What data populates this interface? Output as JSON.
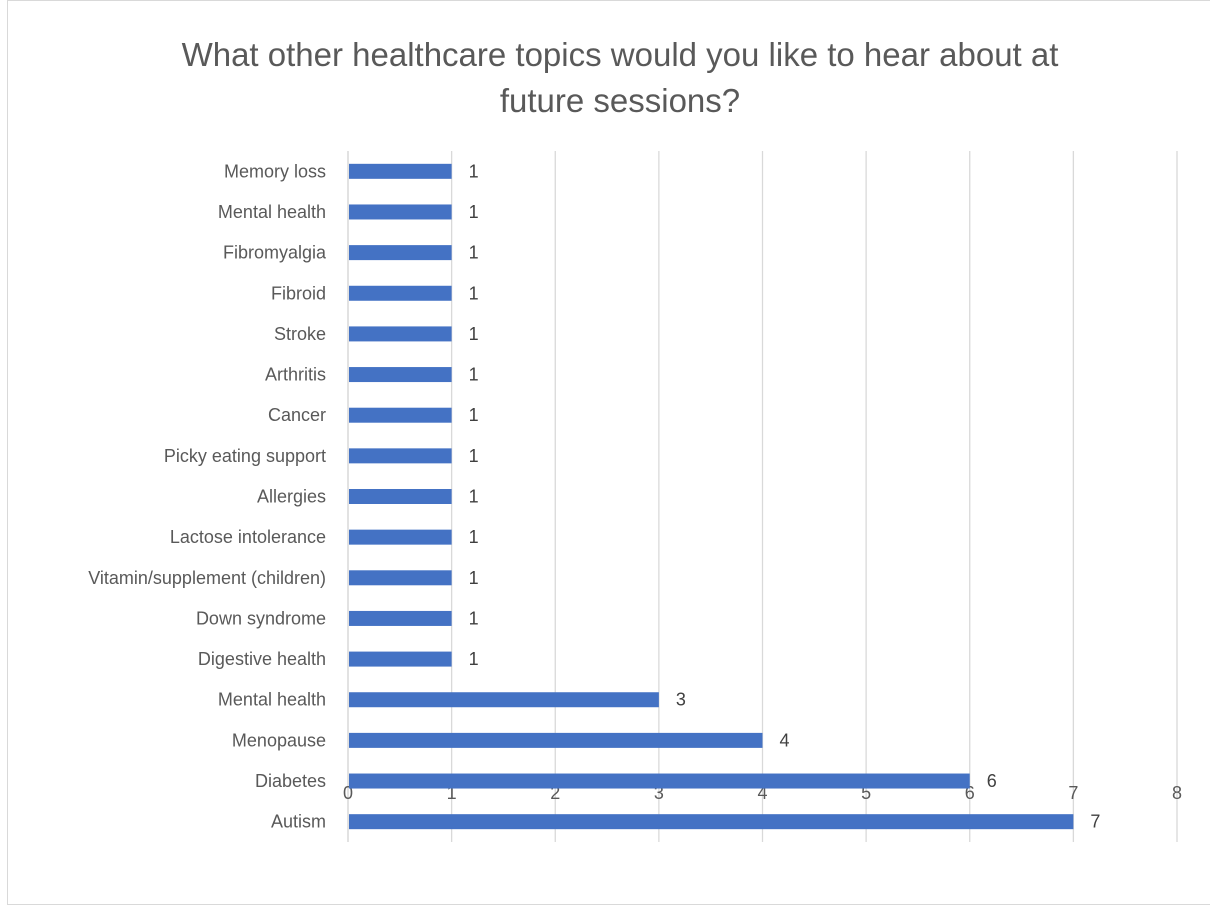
{
  "chart_data": {
    "type": "bar",
    "orientation": "horizontal",
    "title": "What other healthcare topics would you like to hear about at\nfuture sessions?",
    "categories": [
      "Memory loss",
      "Mental health",
      "Fibromyalgia",
      "Fibroid",
      "Stroke",
      "Arthritis",
      "Cancer",
      "Picky eating support ",
      "Allergies",
      "Lactose intolerance ",
      "Vitamin/supplement (children)",
      "Down syndrome",
      "Digestive health",
      "Mental health",
      "Menopause",
      "Diabetes",
      "Autism"
    ],
    "values": [
      1,
      1,
      1,
      1,
      1,
      1,
      1,
      1,
      1,
      1,
      1,
      1,
      1,
      3,
      4,
      6,
      7
    ],
    "xlim": [
      0,
      8
    ],
    "xticks": [
      0,
      1,
      2,
      3,
      4,
      5,
      6,
      7,
      8
    ],
    "grid": true,
    "data_labels": true,
    "bar_color": "#4472c4",
    "grid_color": "#d9d9d9",
    "text_color": "#595959",
    "label_color": "#404040"
  }
}
